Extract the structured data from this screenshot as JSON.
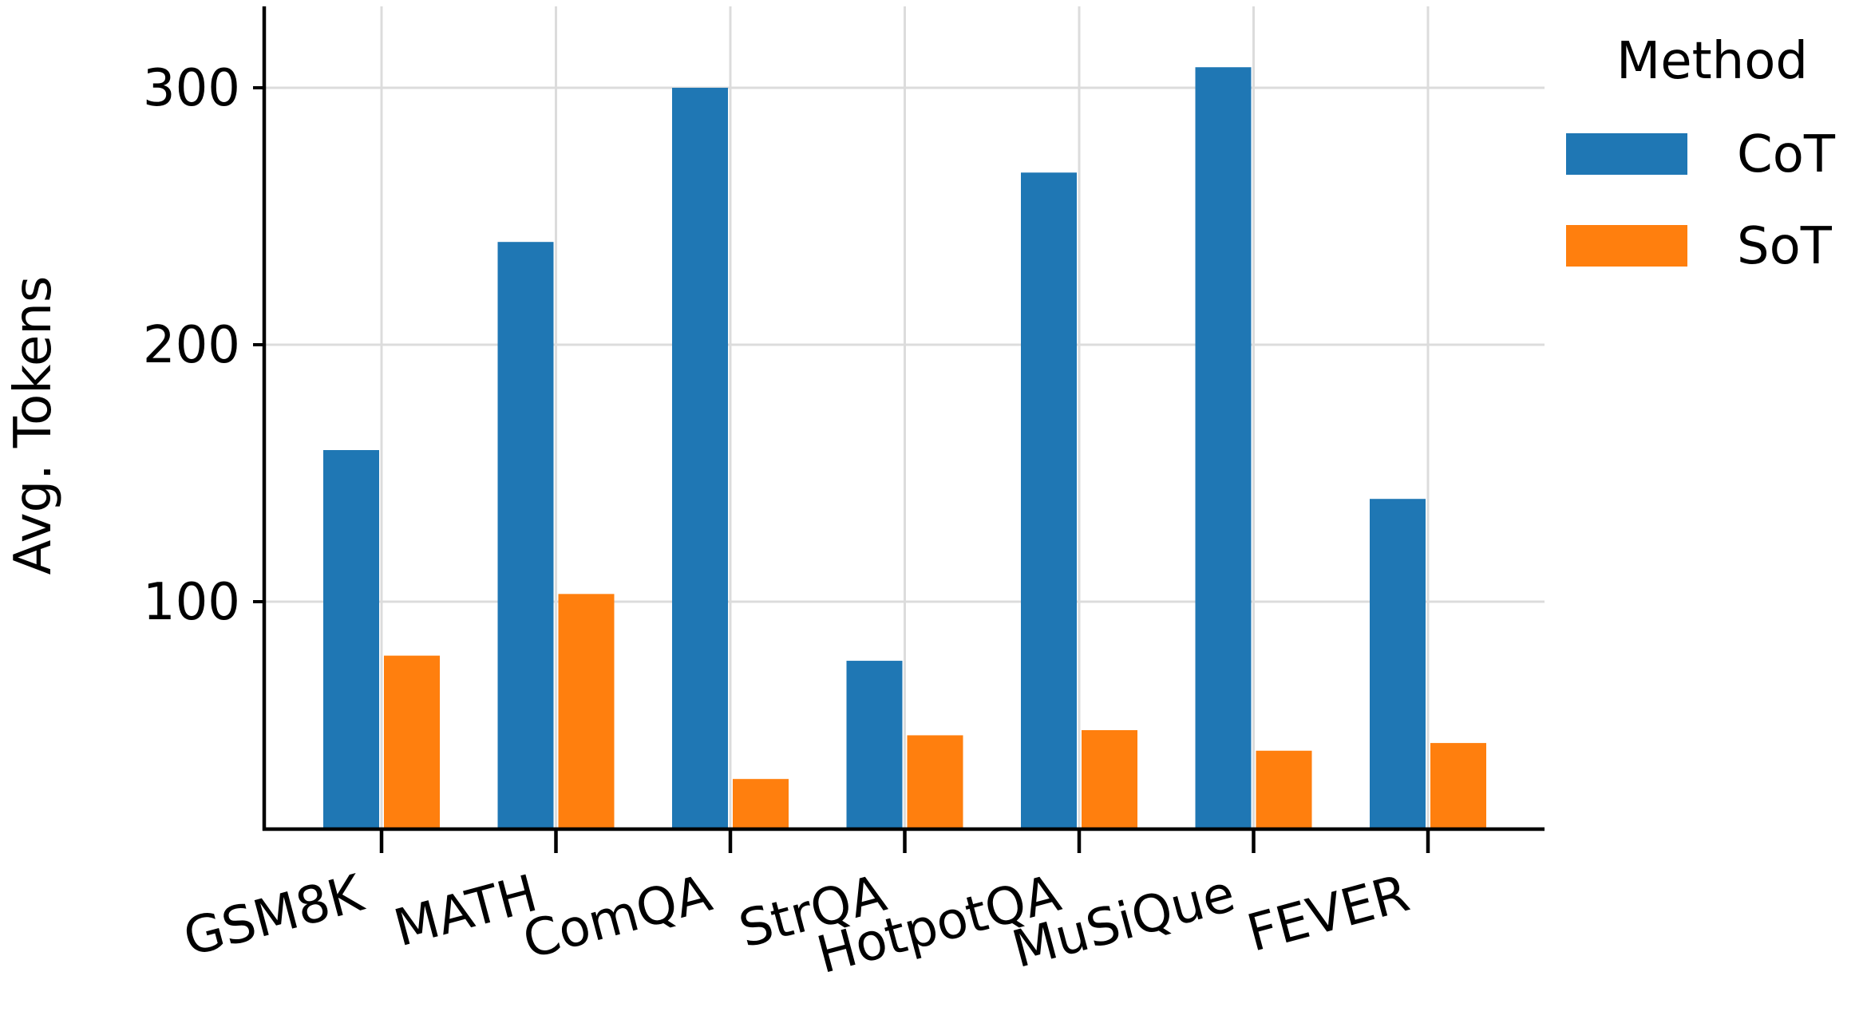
{
  "chart_data": {
    "type": "bar",
    "title": "",
    "xlabel": "",
    "ylabel": "Avg. Tokens",
    "categories": [
      "GSM8K",
      "MATH",
      "ComQA",
      "StrQA",
      "HotpotQA",
      "MuSiQue",
      "FEVER"
    ],
    "series": [
      {
        "name": "CoT",
        "color": "#1f77b4",
        "values": [
          159,
          240,
          300,
          77,
          267,
          308,
          140
        ]
      },
      {
        "name": "SoT",
        "color": "#ff7f0e",
        "values": [
          79,
          103,
          31,
          48,
          50,
          42,
          45
        ]
      }
    ],
    "ylim": [
      10,
      330
    ],
    "yticks": [
      100,
      200,
      300
    ],
    "grid": true,
    "legend": {
      "title": "Method",
      "placement": "top-right, outside"
    }
  }
}
